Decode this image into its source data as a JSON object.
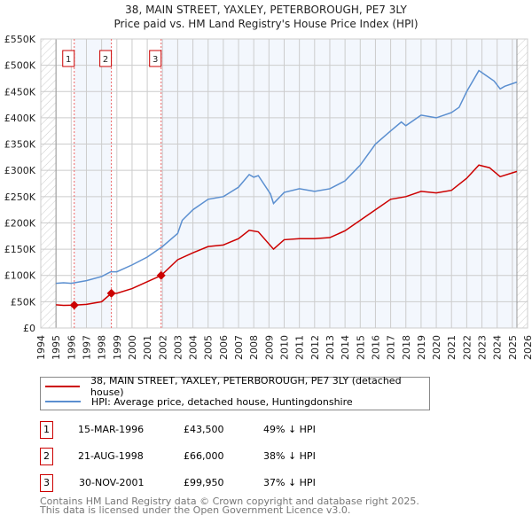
{
  "chart_data": {
    "type": "line",
    "title": "38, MAIN STREET, YAXLEY, PETERBOROUGH, PE7 3LY",
    "subtitle": "Price paid vs. HM Land Registry's House Price Index (HPI)",
    "xlim": [
      1994,
      2026
    ],
    "ylim": [
      0,
      550000
    ],
    "x_ticks": [
      "1994",
      "1995",
      "1996",
      "1997",
      "1998",
      "1999",
      "2000",
      "2001",
      "2002",
      "2003",
      "2004",
      "2005",
      "2006",
      "2007",
      "2008",
      "2009",
      "2010",
      "2011",
      "2012",
      "2013",
      "2014",
      "2015",
      "2016",
      "2017",
      "2018",
      "2019",
      "2020",
      "2021",
      "2022",
      "2023",
      "2024",
      "2025",
      "2026"
    ],
    "y_ticks": [
      "£0",
      "£50K",
      "£100K",
      "£150K",
      "£200K",
      "£250K",
      "£300K",
      "£350K",
      "£400K",
      "£450K",
      "£500K",
      "£550K"
    ],
    "grid": true,
    "series": [
      {
        "name": "38, MAIN STREET, YAXLEY, PETERBOROUGH, PE7 3LY (detached house)",
        "color": "#cc0000",
        "x": [
          1995,
          1995.5,
          1996.2,
          1997,
          1998,
          1998.64,
          1999,
          2000,
          2001,
          2001.91,
          2003,
          2004,
          2005,
          2006,
          2007,
          2007.7,
          2008.3,
          2009.3,
          2010,
          2011,
          2012,
          2013,
          2014,
          2015,
          2016,
          2017,
          2018,
          2019,
          2020,
          2021,
          2022,
          2022.8,
          2023.5,
          2024.2,
          2025.3
        ],
        "y": [
          44000,
          43000,
          43500,
          45000,
          50000,
          66000,
          66000,
          75000,
          88000,
          99950,
          130000,
          143000,
          155000,
          158000,
          170000,
          186000,
          183000,
          150000,
          168000,
          170000,
          170000,
          172000,
          185000,
          205000,
          225000,
          245000,
          250000,
          260000,
          257000,
          262000,
          285000,
          310000,
          305000,
          288000,
          298000
        ]
      },
      {
        "name": "HPI: Average price, detached house, Huntingdonshire",
        "color": "#5b8fd0",
        "x": [
          1995,
          1995.5,
          1996,
          1997,
          1998,
          1998.6,
          1999,
          2000,
          2001,
          2002,
          2003,
          2003.3,
          2004,
          2005,
          2006,
          2007,
          2007.7,
          2008,
          2008.3,
          2009.1,
          2009.3,
          2010,
          2011,
          2012,
          2013,
          2014,
          2015,
          2016,
          2017,
          2017.7,
          2018,
          2019,
          2020,
          2021,
          2021.5,
          2022,
          2022.8,
          2023.3,
          2023.8,
          2024.2,
          2024.5,
          2025.3
        ],
        "y": [
          85000,
          86000,
          85000,
          90000,
          98000,
          107000,
          107000,
          120000,
          135000,
          155000,
          180000,
          205000,
          225000,
          245000,
          250000,
          268000,
          292000,
          287000,
          290000,
          255000,
          237000,
          258000,
          265000,
          260000,
          265000,
          280000,
          310000,
          350000,
          375000,
          392000,
          385000,
          405000,
          400000,
          410000,
          420000,
          450000,
          490000,
          480000,
          470000,
          455000,
          460000,
          468000
        ]
      }
    ],
    "sales": [
      {
        "label": "1",
        "x": 1996.2,
        "price": 43500,
        "date": "15-MAR-1996",
        "price_text": "£43,500",
        "hpi_text": "49% ↓ HPI"
      },
      {
        "label": "2",
        "x": 1998.64,
        "price": 66000,
        "date": "21-AUG-1998",
        "price_text": "£66,000",
        "hpi_text": "38% ↓ HPI"
      },
      {
        "label": "3",
        "x": 2001.91,
        "price": 99950,
        "date": "30-NOV-2001",
        "price_text": "£99,950",
        "hpi_text": "37% ↓ HPI"
      }
    ],
    "data_range": [
      1995,
      2025.3
    ]
  },
  "footer": {
    "line1": "Contains HM Land Registry data © Crown copyright and database right 2025.",
    "line2": "This data is licensed under the Open Government Licence v3.0."
  }
}
